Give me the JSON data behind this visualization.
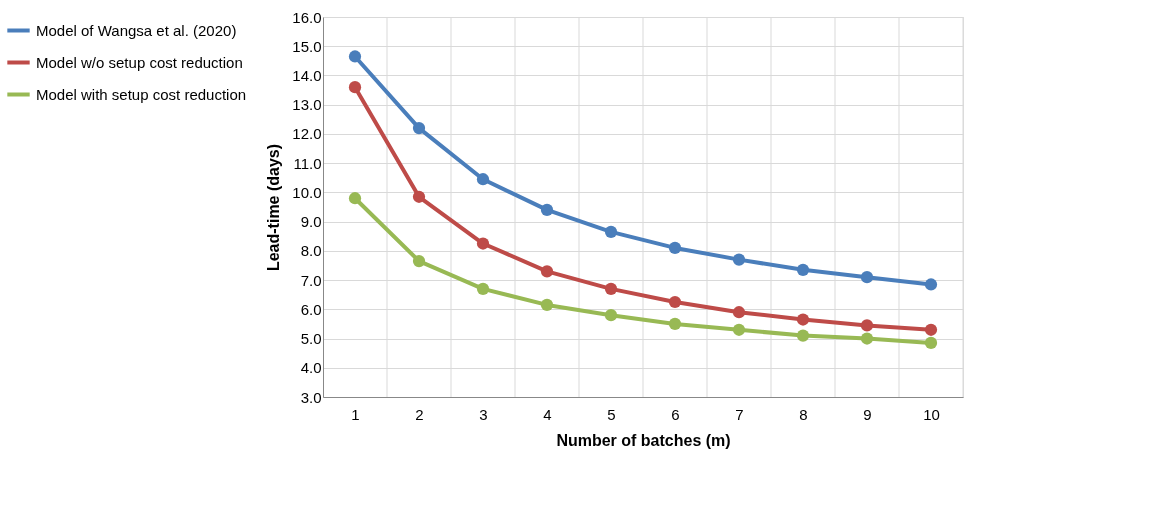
{
  "chart_data": {
    "type": "line",
    "xlabel": "Number of batches (m)",
    "ylabel": "Lead-time (days)",
    "categories": [
      "1",
      "2",
      "3",
      "4",
      "5",
      "6",
      "7",
      "8",
      "9",
      "10"
    ],
    "series": [
      {
        "name": "Model of Wangsa et al. (2020)",
        "color": "#4a7ebb",
        "values": [
          14.65,
          12.2,
          10.45,
          9.4,
          8.65,
          8.1,
          7.7,
          7.35,
          7.1,
          6.85
        ]
      },
      {
        "name": "Model w/o setup cost reduction",
        "color": "#be4b48",
        "values": [
          13.6,
          9.85,
          8.25,
          7.3,
          6.7,
          6.25,
          5.9,
          5.65,
          5.45,
          5.3
        ]
      },
      {
        "name": "Model with setup cost reduction",
        "color": "#98b954",
        "values": [
          9.8,
          7.65,
          6.7,
          6.15,
          5.8,
          5.5,
          5.3,
          5.1,
          5.0,
          4.85
        ]
      }
    ],
    "ylim": [
      3.0,
      16.0
    ],
    "yticks": [
      {
        "value": 3,
        "label": "3.0"
      },
      {
        "value": 4,
        "label": "4.0"
      },
      {
        "value": 5,
        "label": "5.0"
      },
      {
        "value": 6,
        "label": "6.0"
      },
      {
        "value": 7,
        "label": "7.0"
      },
      {
        "value": 8,
        "label": "8.0"
      },
      {
        "value": 9,
        "label": "9.0"
      },
      {
        "value": 10,
        "label": "10.0"
      },
      {
        "value": 11,
        "label": "11.0"
      },
      {
        "value": 12,
        "label": "12.0"
      },
      {
        "value": 13,
        "label": "13.0"
      },
      {
        "value": 14,
        "label": "14.0"
      },
      {
        "value": 15,
        "label": "15.0"
      },
      {
        "value": 16,
        "label": "16.0"
      }
    ],
    "grid": true,
    "legend": "left",
    "marker": "circle",
    "line_style": "solid"
  }
}
